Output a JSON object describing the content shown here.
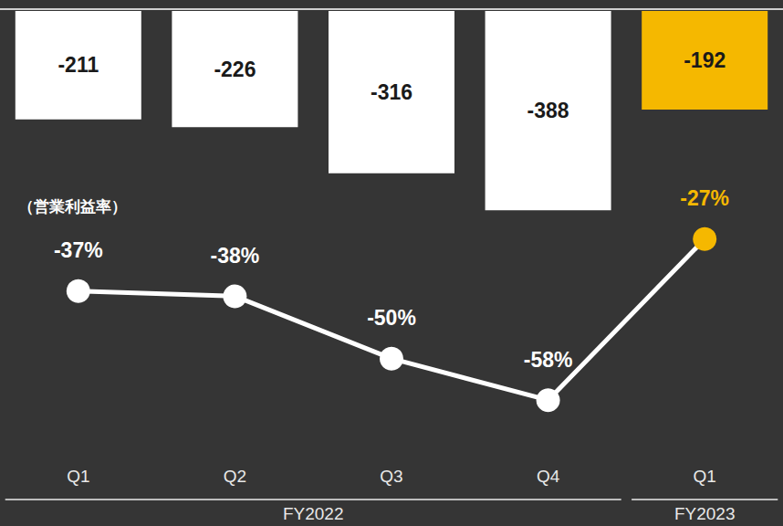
{
  "chart_data": {
    "type": "bar",
    "categories": [
      "Q1",
      "Q2",
      "Q3",
      "Q4",
      "Q1"
    ],
    "category_groups": [
      {
        "label": "FY2022",
        "span": 4
      },
      {
        "label": "FY2023",
        "span": 1
      }
    ],
    "series": [
      {
        "type": "bar",
        "values": [
          -211,
          -226,
          -316,
          -388,
          -192
        ],
        "colors": [
          "#ffffff",
          "#ffffff",
          "#ffffff",
          "#ffffff",
          "#f5b800"
        ]
      },
      {
        "name": "（営業利益率）",
        "type": "line",
        "axis": "y2",
        "marker": "circle",
        "values": [
          -37,
          -38,
          -50,
          -58,
          -27
        ],
        "value_labels": [
          "-37%",
          "-38%",
          "-50%",
          "-58%",
          "-27%"
        ],
        "color": "#ffffff",
        "colors": [
          "#ffffff",
          "#ffffff",
          "#ffffff",
          "#ffffff",
          "#f5b800"
        ]
      }
    ],
    "ylim": [
      -400,
      0
    ],
    "y2lim": [
      -65,
      -20
    ],
    "data_labels": true,
    "tick_labels": "x",
    "grid": false
  }
}
